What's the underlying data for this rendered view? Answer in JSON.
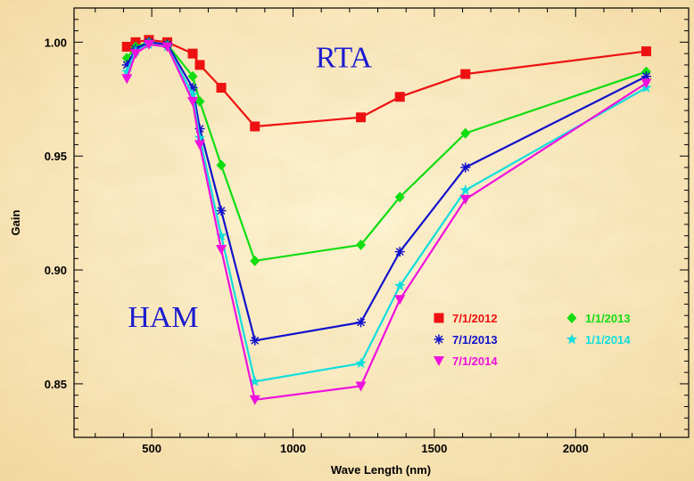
{
  "chart_data": {
    "type": "line",
    "xlabel": "Wave Length (nm)",
    "ylabel": "Gain",
    "xlim": [
      225,
      2400
    ],
    "ylim": [
      0.8265,
      1.015
    ],
    "x_ticks": [
      500,
      1000,
      1500,
      2000
    ],
    "y_ticks": [
      0.85,
      0.9,
      0.95,
      1.0
    ],
    "x_tick_labels": [
      "500",
      "1000",
      "1500",
      "2000"
    ],
    "y_tick_labels": [
      "0.85",
      "0.90",
      "0.95",
      "1.00"
    ],
    "x": [
      412,
      443,
      490,
      555,
      645,
      670,
      746,
      865,
      1240,
      1378,
      1610,
      2250
    ],
    "grid": false,
    "legend_position": "lower-right",
    "annotations": [
      {
        "text": "RTA",
        "x": 1080,
        "y": 0.989,
        "color": "#1c1ccf"
      },
      {
        "text": "HAM",
        "x": 415,
        "y": 0.875,
        "color": "#1c1ccf"
      }
    ],
    "series": [
      {
        "name": "7/1/2012",
        "color": "#ee1111",
        "marker": "square",
        "values": [
          0.998,
          1.0,
          1.001,
          1.0,
          0.995,
          0.99,
          0.98,
          0.963,
          0.967,
          0.976,
          0.986,
          0.996
        ]
      },
      {
        "name": "1/1/2013",
        "color": "#11dd11",
        "marker": "diamond",
        "values": [
          0.993,
          0.998,
          1.0,
          0.999,
          0.985,
          0.974,
          0.946,
          0.904,
          0.911,
          0.932,
          0.96,
          0.987
        ]
      },
      {
        "name": "7/1/2013",
        "color": "#1111cc",
        "marker": "asterisk",
        "values": [
          0.99,
          0.997,
          1.0,
          0.999,
          0.98,
          0.962,
          0.926,
          0.869,
          0.877,
          0.908,
          0.945,
          0.985
        ]
      },
      {
        "name": "1/1/2014",
        "color": "#11dddd",
        "marker": "star",
        "values": [
          0.987,
          0.996,
          0.999,
          0.998,
          0.977,
          0.958,
          0.915,
          0.851,
          0.859,
          0.893,
          0.935,
          0.98
        ]
      },
      {
        "name": "7/1/2014",
        "color": "#ee11dd",
        "marker": "triangle-down",
        "values": [
          0.984,
          0.995,
          0.999,
          0.998,
          0.974,
          0.955,
          0.909,
          0.843,
          0.849,
          0.887,
          0.931,
          0.982
        ]
      }
    ]
  }
}
